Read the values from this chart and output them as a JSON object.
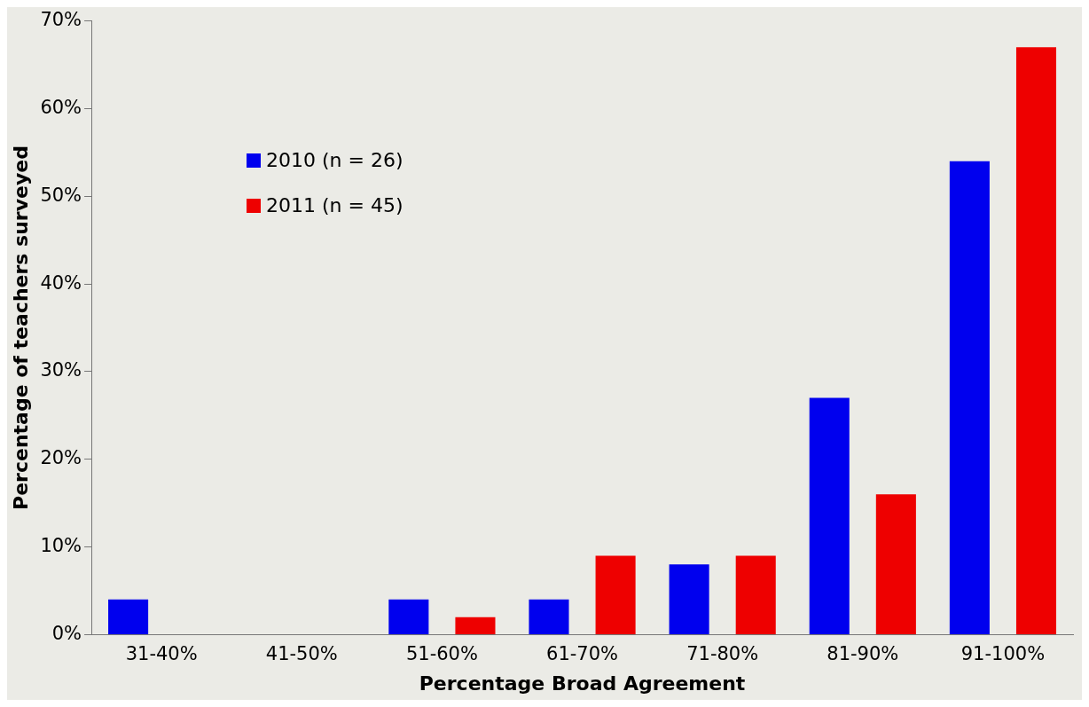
{
  "chart_data": {
    "type": "bar",
    "xlabel": "Percentage Broad Agreement",
    "ylabel": "Percentage of teachers surveyed",
    "categories": [
      "31-40%",
      "41-50%",
      "51-60%",
      "61-70%",
      "71-80%",
      "81-90%",
      "91-100%"
    ],
    "series": [
      {
        "name": "2010 (n = 26)",
        "color": "#0000ee",
        "values": [
          4,
          0,
          4,
          4,
          8,
          27,
          54
        ]
      },
      {
        "name": "2011 (n = 45)",
        "color": "#ee0000",
        "values": [
          0,
          0,
          2,
          9,
          9,
          16,
          67
        ]
      }
    ],
    "ylim": [
      0,
      70
    ],
    "yticks": [
      {
        "value": 0,
        "label": "0%"
      },
      {
        "value": 10,
        "label": "10%"
      },
      {
        "value": 20,
        "label": "20%"
      },
      {
        "value": 30,
        "label": "30%"
      },
      {
        "value": 40,
        "label": "40%"
      },
      {
        "value": 50,
        "label": "50%"
      },
      {
        "value": 60,
        "label": "60%"
      },
      {
        "value": 70,
        "label": "70%"
      }
    ],
    "grid": false,
    "legend": "top left"
  }
}
